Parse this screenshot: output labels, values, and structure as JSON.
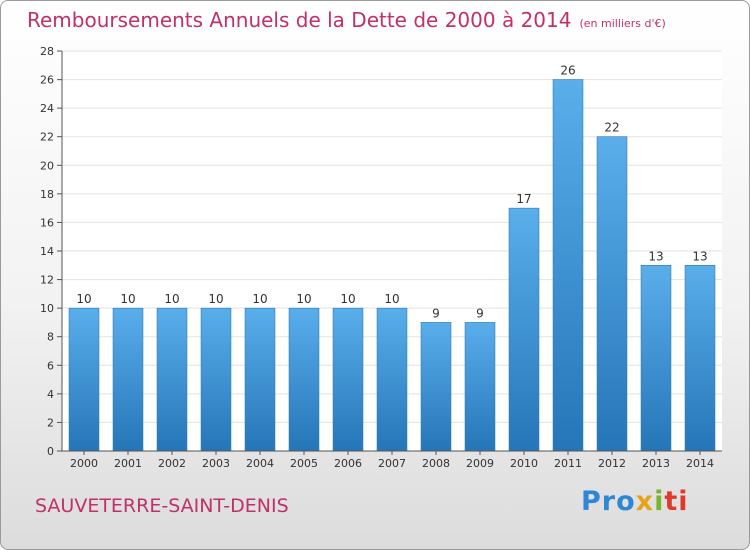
{
  "chart_data": {
    "type": "bar",
    "title": "Remboursements Annuels de la Dette de 2000 à 2014",
    "unit_note": "(en milliers d'€)",
    "categories": [
      "2000",
      "2001",
      "2002",
      "2003",
      "2004",
      "2005",
      "2006",
      "2007",
      "2008",
      "2009",
      "2010",
      "2011",
      "2012",
      "2013",
      "2014"
    ],
    "values": [
      10,
      10,
      10,
      10,
      10,
      10,
      10,
      10,
      9,
      9,
      17,
      26,
      22,
      13,
      13
    ],
    "data_labels": [
      "10",
      "10",
      "10",
      "10",
      "10",
      "10",
      "10",
      "10",
      "9",
      "9",
      "17",
      "26",
      "22",
      "13",
      "13"
    ],
    "ylim": [
      0,
      28
    ],
    "yticks": [
      "0",
      "2",
      "4",
      "6",
      "8",
      "10",
      "12",
      "14",
      "16",
      "18",
      "20",
      "22",
      "24",
      "26",
      "28"
    ],
    "xlabel": "",
    "ylabel": "",
    "grid": true,
    "colors": {
      "bar_top": "#5aaeea",
      "bar_bottom": "#2576b8",
      "grid": "#e2e2e2",
      "title": "#c0306a"
    }
  },
  "commune": "SAUVETERRE-SAINT-DENIS",
  "brand": {
    "letters": [
      "Pro",
      "x",
      "i",
      "ti"
    ]
  }
}
